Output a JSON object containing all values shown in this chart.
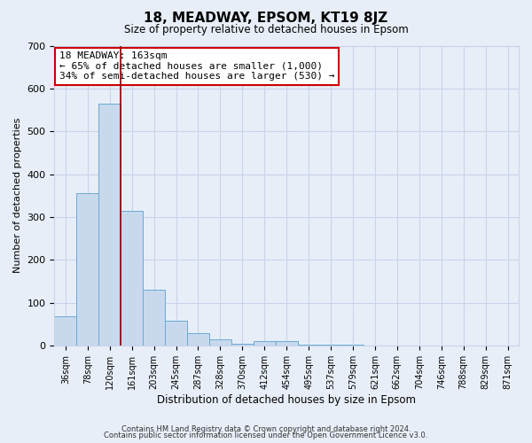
{
  "title": "18, MEADWAY, EPSOM, KT19 8JZ",
  "subtitle": "Size of property relative to detached houses in Epsom",
  "xlabel": "Distribution of detached houses by size in Epsom",
  "ylabel": "Number of detached properties",
  "bar_labels": [
    "36sqm",
    "78sqm",
    "120sqm",
    "161sqm",
    "203sqm",
    "245sqm",
    "287sqm",
    "328sqm",
    "370sqm",
    "412sqm",
    "454sqm",
    "495sqm",
    "537sqm",
    "579sqm",
    "621sqm",
    "662sqm",
    "704sqm",
    "746sqm",
    "788sqm",
    "829sqm",
    "871sqm"
  ],
  "bar_heights": [
    68,
    355,
    565,
    315,
    130,
    58,
    28,
    14,
    3,
    10,
    10,
    2,
    2,
    2,
    0,
    0,
    0,
    0,
    0,
    0,
    0
  ],
  "bar_color": "#c8d9ee",
  "bar_edge_color": "#6aaad4",
  "vline_pos": 2.5,
  "vline_color": "#8b0000",
  "ylim": [
    0,
    700
  ],
  "yticks": [
    0,
    100,
    200,
    300,
    400,
    500,
    600,
    700
  ],
  "annotation_title": "18 MEADWAY: 163sqm",
  "annotation_line1": "← 65% of detached houses are smaller (1,000)",
  "annotation_line2": "34% of semi-detached houses are larger (530) →",
  "annotation_box_color": "#ffffff",
  "annotation_box_edgecolor": "#cc0000",
  "grid_color": "#c8d4e8",
  "bg_color": "#e8eef8",
  "footer1": "Contains HM Land Registry data © Crown copyright and database right 2024.",
  "footer2": "Contains public sector information licensed under the Open Government Licence v3.0."
}
